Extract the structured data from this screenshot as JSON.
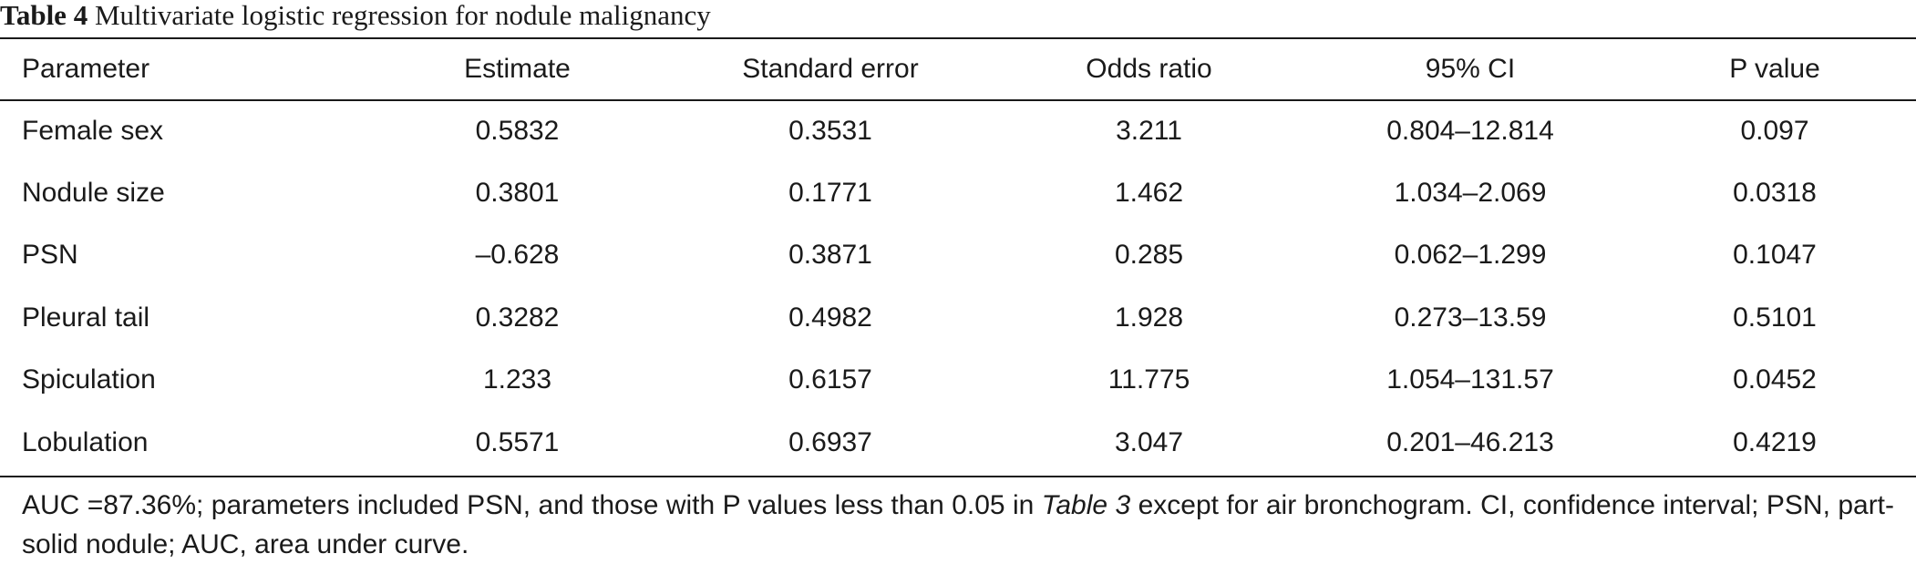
{
  "caption": {
    "label": "Table 4",
    "title": "Multivariate logistic regression for nodule malignancy"
  },
  "table": {
    "headers": [
      "Parameter",
      "Estimate",
      "Standard error",
      "Odds ratio",
      "95% CI",
      "P value"
    ],
    "rows": [
      [
        "Female sex",
        "0.5832",
        "0.3531",
        "3.211",
        "0.804–12.814",
        "0.097"
      ],
      [
        "Nodule size",
        "0.3801",
        "0.1771",
        "1.462",
        "1.034–2.069",
        "0.0318"
      ],
      [
        "PSN",
        "–0.628",
        "0.3871",
        "0.285",
        "0.062–1.299",
        "0.1047"
      ],
      [
        "Pleural tail",
        "0.3282",
        "0.4982",
        "1.928",
        "0.273–13.59",
        "0.5101"
      ],
      [
        "Spiculation",
        "1.233",
        "0.6157",
        "11.775",
        "1.054–131.57",
        "0.0452"
      ],
      [
        "Lobulation",
        "0.5571",
        "0.6937",
        "3.047",
        "0.201–46.213",
        "0.4219"
      ]
    ]
  },
  "footnote": {
    "part1": "AUC =87.36%; parameters included PSN, and those with P values less than 0.05 in ",
    "ref": "Table 3",
    "part2": " except for air bronchogram. CI, confidence interval; PSN, part-solid nodule; AUC, area under curve."
  }
}
